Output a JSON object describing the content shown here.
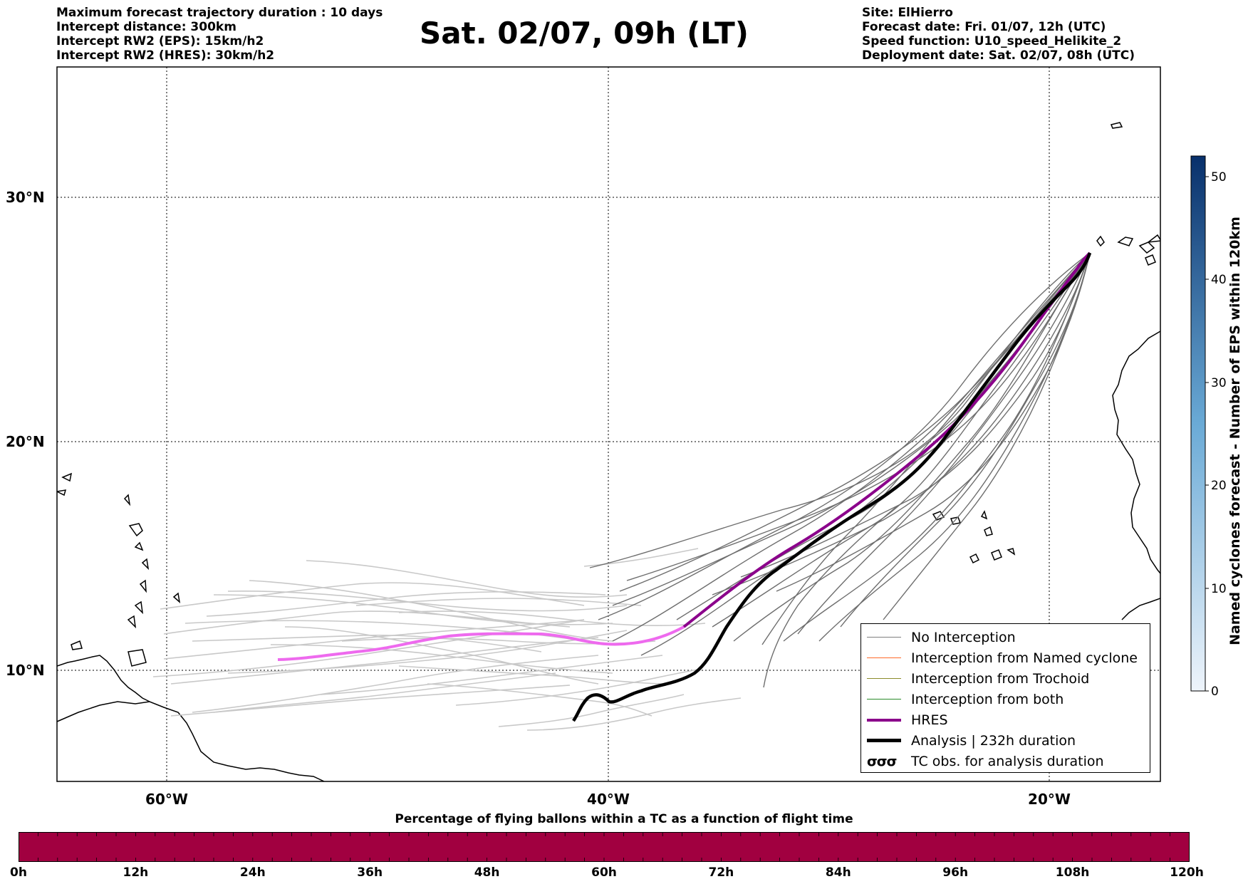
{
  "header": {
    "title": "Sat. 02/07, 09h (LT)",
    "info_left": [
      "Maximum forecast trajectory duration : 10 days",
      "Intercept distance: 300km",
      "Intercept RW2 (EPS):  15km/h2",
      "Intercept RW2 (HRES): 30km/h2"
    ],
    "info_right": [
      "Site: ElHierro",
      "Forecast date: Fri. 01/07, 12h (UTC)",
      "Speed function: U10_speed_Helikite_2",
      "Deployment date: Sat. 02/07, 08h (UTC)"
    ]
  },
  "map": {
    "lat_labels": [
      "30°N",
      "20°N",
      "10°N"
    ],
    "lon_labels": [
      "60°W",
      "40°W",
      "20°W"
    ],
    "gridlines": true
  },
  "legend": {
    "items": [
      {
        "label": "No Interception",
        "color": "#808080"
      },
      {
        "label": "Interception from Named cyclone",
        "color": "#ff6a2a"
      },
      {
        "label": "Interception from Trochoid",
        "color": "#8b8b2a"
      },
      {
        "label": "Interception from both",
        "color": "#2a8b2a"
      },
      {
        "label": "HRES",
        "color": "#8b008b"
      },
      {
        "label": "Analysis | 232h duration",
        "color": "#000000"
      }
    ],
    "tc_obs_label": "TC obs. for analysis duration",
    "tc_obs_symbol": "σσσ"
  },
  "colorbar": {
    "label": "Named cyclones forecast - Number of EPS within 120km",
    "ticks": [
      "0",
      "10",
      "20",
      "30",
      "40",
      "50"
    ],
    "colors": [
      "#e8f0fa",
      "#5a9fd0",
      "#08306b"
    ]
  },
  "time_bar": {
    "title": "Percentage of flying ballons within a TC as a function of flight time",
    "ticks": [
      "0h",
      "12h",
      "24h",
      "36h",
      "48h",
      "60h",
      "72h",
      "84h",
      "96h",
      "108h",
      "120h"
    ],
    "color": "#a10040"
  }
}
